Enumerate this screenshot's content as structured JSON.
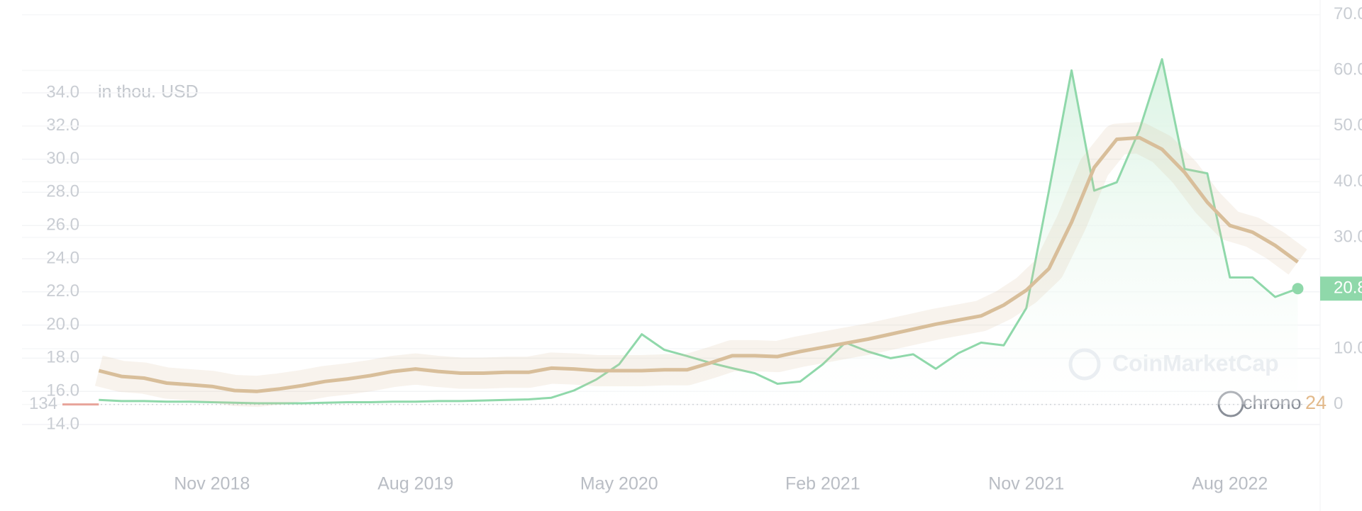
{
  "chart_data": {
    "type": "line",
    "unit_label": "in thou. USD",
    "baseline_label": "134",
    "watermarks": [
      "CoinMarketCap",
      "chrono",
      "24"
    ],
    "categories": [
      null,
      null,
      null,
      null,
      null,
      "Nov 2018",
      null,
      null,
      null,
      null,
      null,
      null,
      null,
      null,
      "Aug 2019",
      null,
      null,
      null,
      null,
      null,
      null,
      null,
      null,
      "May 2020",
      null,
      null,
      null,
      null,
      null,
      null,
      null,
      null,
      "Feb 2021",
      null,
      null,
      null,
      null,
      null,
      null,
      null,
      null,
      "Nov 2021",
      null,
      null,
      null,
      null,
      null,
      null,
      null,
      null,
      "Aug 2022",
      null,
      null,
      null
    ],
    "series": [
      {
        "color": "#d8be9a",
        "axis": "y",
        "values": [
          17.25,
          16.9,
          16.8,
          16.5,
          16.4,
          16.3,
          16.05,
          16.0,
          16.15,
          16.35,
          16.6,
          16.75,
          16.95,
          17.2,
          17.35,
          17.2,
          17.1,
          17.1,
          17.15,
          17.15,
          17.4,
          17.35,
          17.25,
          17.25,
          17.25,
          17.3,
          17.3,
          17.7,
          18.15,
          18.15,
          18.1,
          18.4,
          18.65,
          18.9,
          19.15,
          19.45,
          19.75,
          20.05,
          20.3,
          20.55,
          21.2,
          22.1,
          23.4,
          26.2,
          29.5,
          31.2,
          31.3,
          30.6,
          29.2,
          27.4,
          26.0,
          25.6,
          24.8,
          23.8
        ]
      },
      {
        "color": "#8fd8aa",
        "axis": "y2",
        "values": [
          0.8,
          0.6,
          0.6,
          0.5,
          0.5,
          0.4,
          0.3,
          0.2,
          0.2,
          0.2,
          0.3,
          0.4,
          0.4,
          0.5,
          0.5,
          0.6,
          0.6,
          0.7,
          0.8,
          0.9,
          1.2,
          2.5,
          4.5,
          7.2,
          12.6,
          9.8,
          8.7,
          7.5,
          6.5,
          5.6,
          3.7,
          4.1,
          7.2,
          11.1,
          9.5,
          8.3,
          9.0,
          6.4,
          9.2,
          11.1,
          10.6,
          17.3,
          38.4,
          60.0,
          38.4,
          39.9,
          49.3,
          62.0,
          42.3,
          41.5,
          22.8,
          22.8,
          19.3,
          20.8
        ]
      }
    ],
    "ylim": [
      14,
      34
    ],
    "yticks": [
      {
        "value": 14,
        "label": "14.0"
      },
      {
        "value": 16,
        "label": "16.0"
      },
      {
        "value": 18,
        "label": "18.0"
      },
      {
        "value": 20,
        "label": "20.0"
      },
      {
        "value": 22,
        "label": "22.0"
      },
      {
        "value": 24,
        "label": "24.0"
      },
      {
        "value": 26,
        "label": "26.0"
      },
      {
        "value": 28,
        "label": "28.0"
      },
      {
        "value": 30,
        "label": "30.0"
      },
      {
        "value": 32,
        "label": "32.0"
      },
      {
        "value": 34,
        "label": "34.0"
      }
    ],
    "y2lim": [
      0,
      70
    ],
    "y2ticks": [
      0,
      {
        "value": 10,
        "label": "10.0"
      },
      {
        "value": 30,
        "label": "30.0"
      },
      {
        "value": 40,
        "label": "40.0"
      },
      {
        "value": 50,
        "label": "50.0"
      },
      {
        "value": 60,
        "label": "60.0"
      },
      {
        "value": 70,
        "label": "70.0"
      }
    ],
    "grid": true
  }
}
